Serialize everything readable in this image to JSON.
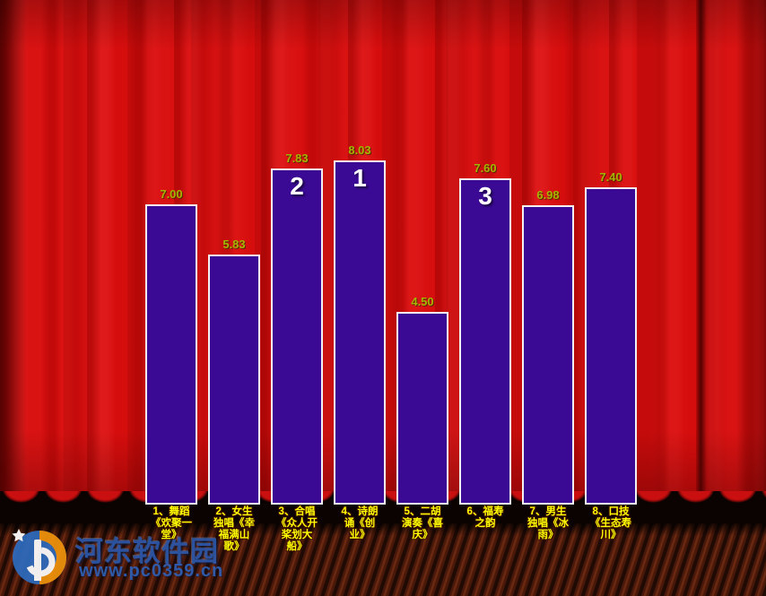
{
  "colors": {
    "curtain_red": "#d60d0d",
    "bar_fill": "#3b0a94",
    "bar_border": "#f2f2f2",
    "value_text": "#a6b400",
    "category_text": "#ffff00",
    "rank_text": "#ffffff"
  },
  "chart_data": {
    "type": "bar",
    "title": "",
    "xlabel": "",
    "ylabel": "",
    "ylim": [
      0,
      10
    ],
    "grid": false,
    "legend": false,
    "categories": [
      "1、舞蹈《欢聚一堂》",
      "2、女生独唱《幸福满山歌》",
      "3、合唱《众人开桨划大船》",
      "4、诗朗诵《创业》",
      "5、二胡演奏《喜庆》",
      "6、福寿之韵",
      "7、男生独唱《冰雨》",
      "8、口技《生态寿川》"
    ],
    "display_labels": [
      "1、舞蹈\n《欢聚一\n堂》",
      "2、女生\n独唱《幸\n福满山\n歌》",
      "3、合唱\n《众人开\n桨划大\n船》",
      "4、诗朗\n诵《创\n业》",
      "5、二胡\n演奏《喜\n庆》",
      "6、福寿\n之韵",
      "7、男生\n独唱《冰\n雨》",
      "8、口技\n《生态寿\n川》"
    ],
    "values": [
      7.0,
      5.83,
      7.83,
      8.03,
      4.5,
      7.6,
      6.98,
      7.4
    ],
    "value_labels": [
      "7.00",
      "5.83",
      "7.83",
      "8.03",
      "4.50",
      "7.60",
      "6.98",
      "7.40"
    ],
    "ranks": [
      "",
      "",
      "2",
      "1",
      "",
      "3",
      "",
      ""
    ]
  },
  "watermark": {
    "site_name": "河东软件园",
    "site_url": "www.pc0359.cn"
  }
}
